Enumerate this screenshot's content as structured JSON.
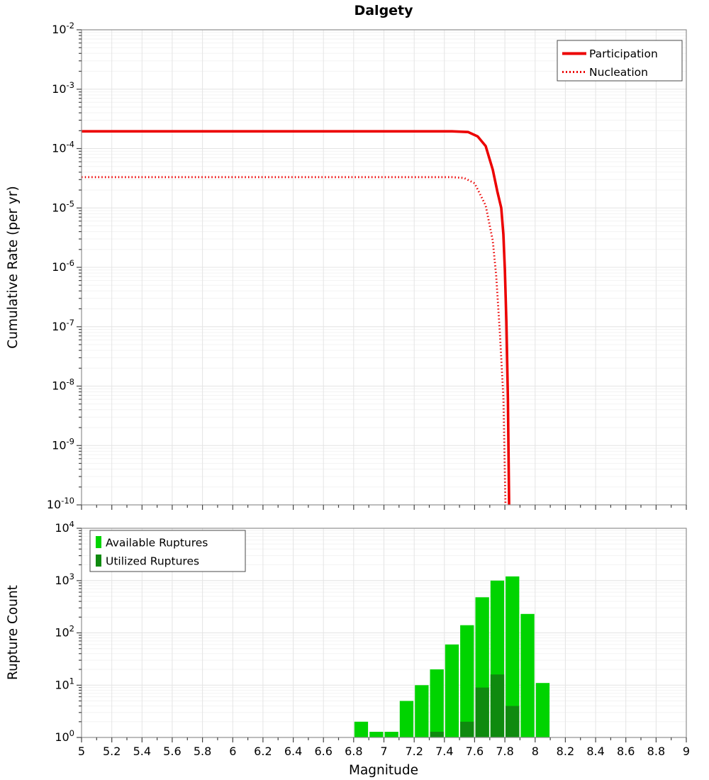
{
  "title": "Dalgety",
  "colors": {
    "line_red": "#EC0000",
    "available_green": "#00D400",
    "utilized_green": "#0F8A0F",
    "grid_major": "#e4e4e4",
    "grid_minor": "#f3f3f3",
    "frame": "#909090",
    "tick": "#444444"
  },
  "chart_data": [
    {
      "type": "line",
      "title": "Dalgety",
      "ylabel": "Cumulative Rate (per yr)",
      "xlabel": "",
      "xlim": [
        5,
        9
      ],
      "x_tick_step": 0.2,
      "ylog": true,
      "ylim": [
        1e-10,
        0.01
      ],
      "grid": true,
      "legend_position": "top-right",
      "series": [
        {
          "name": "Participation",
          "style": "solid",
          "color": "#EC0000",
          "points": [
            [
              5,
              0.000195
            ],
            [
              6,
              0.000195
            ],
            [
              7,
              0.000195
            ],
            [
              7.45,
              0.000195
            ],
            [
              7.556,
              0.00019
            ],
            [
              7.62,
              0.00016
            ],
            [
              7.673,
              0.00011
            ],
            [
              7.72,
              4.4e-05
            ],
            [
              7.75,
              1.9e-05
            ],
            [
              7.776,
              1e-05
            ],
            [
              7.79,
              3.6e-06
            ],
            [
              7.8,
              9e-07
            ],
            [
              7.81,
              1.2e-07
            ],
            [
              7.82,
              6e-09
            ],
            [
              7.828,
              1e-10
            ]
          ]
        },
        {
          "name": "Nucleation",
          "style": "dotted",
          "color": "#EC0000",
          "points": [
            [
              5,
              3.3e-05
            ],
            [
              6,
              3.3e-05
            ],
            [
              7,
              3.3e-05
            ],
            [
              7.45,
              3.3e-05
            ],
            [
              7.53,
              3.2e-05
            ],
            [
              7.6,
              2.6e-05
            ],
            [
              7.673,
              1.1e-05
            ],
            [
              7.72,
              2.8e-06
            ],
            [
              7.743,
              7e-07
            ],
            [
              7.767,
              7.8e-08
            ],
            [
              7.79,
              6.5e-09
            ],
            [
              7.804,
              1e-10
            ]
          ]
        }
      ]
    },
    {
      "type": "bar",
      "title": "",
      "ylabel": "Rupture Count",
      "xlabel": "Magnitude",
      "xlim": [
        5,
        9
      ],
      "x_tick_step": 0.2,
      "ylog": true,
      "ylim": [
        1,
        10000
      ],
      "bar_width": 0.1,
      "grid": true,
      "legend_position": "top-left",
      "series": [
        {
          "name": "Available Ruptures",
          "color": "#00D400",
          "x": [
            6.85,
            6.95,
            7.05,
            7.15,
            7.25,
            7.35,
            7.45,
            7.55,
            7.65,
            7.75,
            7.85,
            7.95,
            8.05
          ],
          "values": [
            2,
            1,
            1,
            5,
            10,
            20,
            60,
            140,
            480,
            1000,
            1200,
            230,
            11
          ]
        },
        {
          "name": "Utilized Ruptures",
          "color": "#0F8A0F",
          "x": [
            7.35,
            7.55,
            7.65,
            7.75,
            7.85
          ],
          "values": [
            1,
            2,
            9,
            16,
            4
          ]
        }
      ]
    }
  ]
}
